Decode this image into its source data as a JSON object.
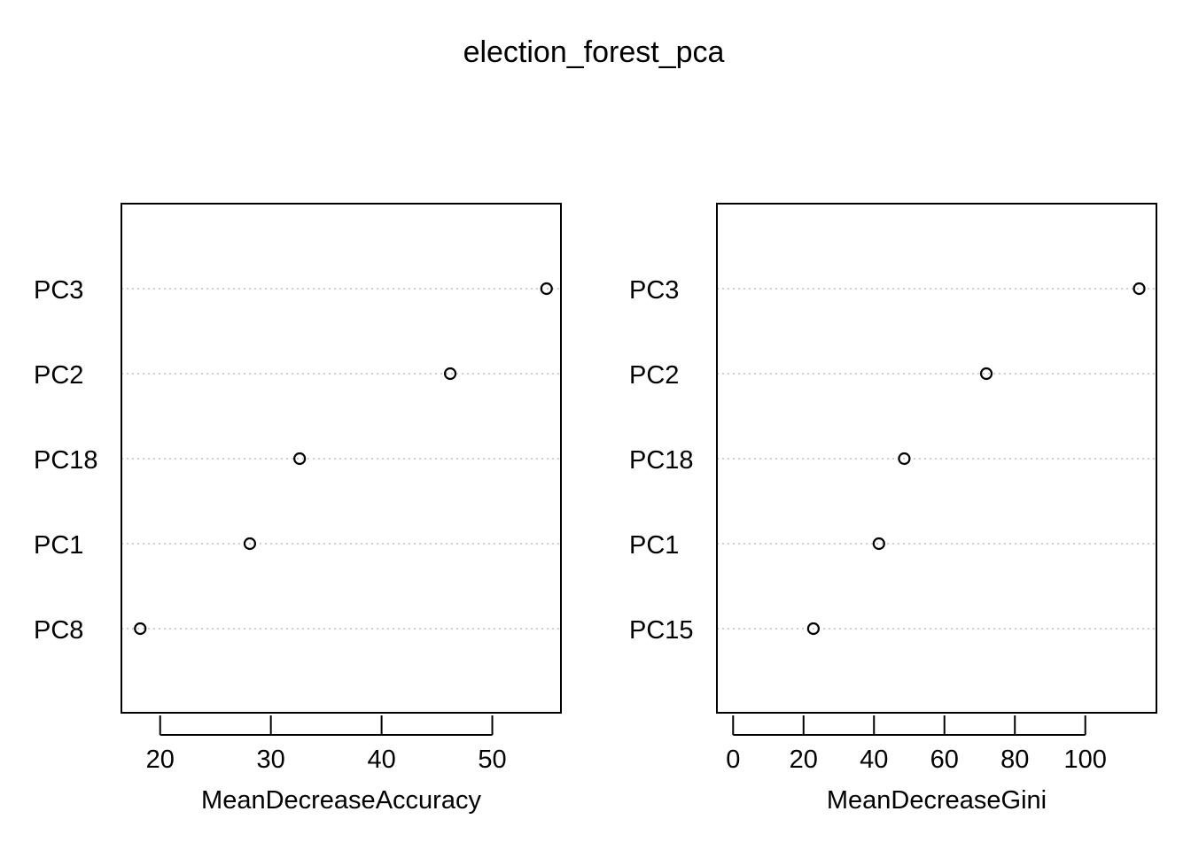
{
  "title": "election_forest_pca",
  "chart_data": [
    {
      "type": "scatter",
      "plot_style": "dotchart",
      "xlabel": "MeanDecreaseAccuracy",
      "ylabel": "",
      "categories": [
        "PC3",
        "PC2",
        "PC18",
        "PC1",
        "PC8"
      ],
      "values": [
        54.9,
        46.2,
        32.6,
        28.1,
        18.2
      ],
      "xlim": [
        16.5,
        56.2
      ],
      "xticks": [
        20,
        30,
        40,
        50
      ],
      "grid": "dotted horizontal lines per category",
      "marker": "open circle"
    },
    {
      "type": "scatter",
      "plot_style": "dotchart",
      "xlabel": "MeanDecreaseGini",
      "ylabel": "",
      "categories": [
        "PC3",
        "PC2",
        "PC18",
        "PC1",
        "PC15"
      ],
      "values": [
        115.3,
        71.9,
        48.6,
        41.4,
        22.8
      ],
      "xlim": [
        -4.6,
        120.2
      ],
      "xticks": [
        0,
        20,
        40,
        60,
        80,
        100
      ],
      "grid": "dotted horizontal lines per category",
      "marker": "open circle"
    }
  ],
  "style": {
    "foreground": "#000000",
    "grid_color": "#bebebe",
    "background": "#ffffff"
  }
}
